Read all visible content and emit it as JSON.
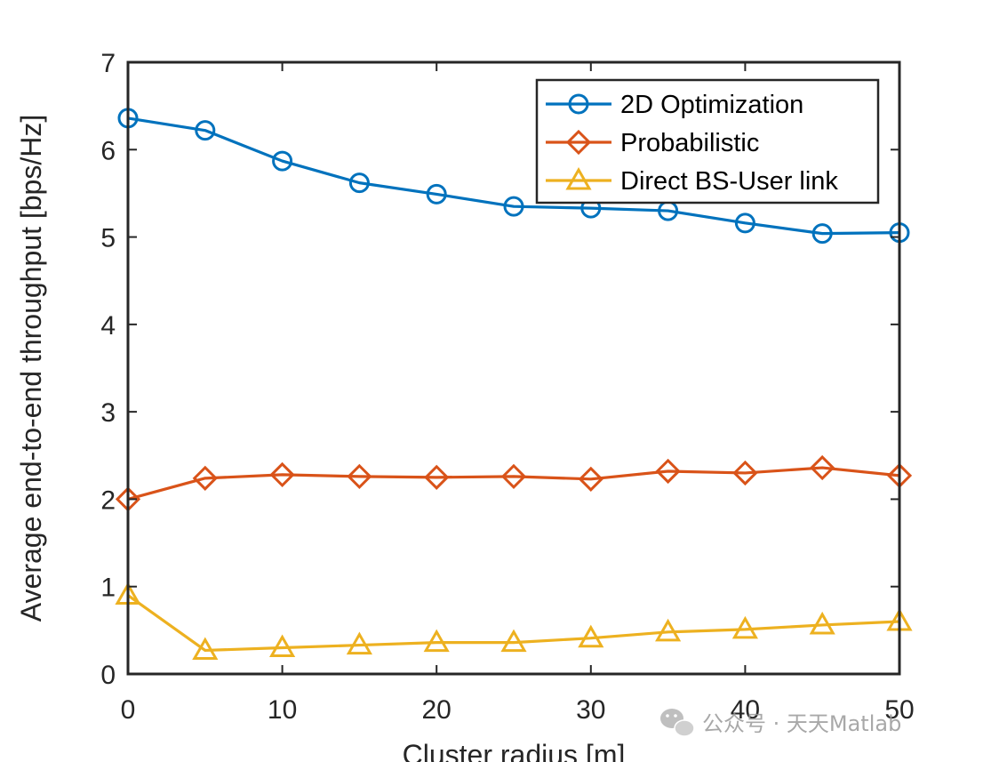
{
  "chart_data": {
    "type": "line",
    "xlabel": "Cluster radius [m]",
    "ylabel": "Average end-to-end throughput [bps/Hz]",
    "xlim": [
      0,
      50
    ],
    "ylim": [
      0,
      7
    ],
    "xticks": [
      0,
      10,
      20,
      30,
      40,
      50
    ],
    "yticks": [
      0,
      1,
      2,
      3,
      4,
      5,
      6,
      7
    ],
    "x": [
      0,
      5,
      10,
      15,
      20,
      25,
      30,
      35,
      40,
      45,
      50
    ],
    "grid": false,
    "legend_position": "top-right",
    "series": [
      {
        "name": "2D Optimization",
        "color": "#0072BD",
        "marker": "circle",
        "values": [
          6.36,
          6.22,
          5.87,
          5.62,
          5.49,
          5.35,
          5.33,
          5.3,
          5.16,
          5.04,
          5.05
        ]
      },
      {
        "name": "Probabilistic",
        "color": "#D95319",
        "marker": "diamond",
        "values": [
          2.0,
          2.24,
          2.28,
          2.26,
          2.25,
          2.26,
          2.23,
          2.32,
          2.3,
          2.36,
          2.27
        ]
      },
      {
        "name": "Direct BS-User link",
        "color": "#EDB120",
        "marker": "triangle",
        "values": [
          0.9,
          0.27,
          0.3,
          0.33,
          0.36,
          0.36,
          0.41,
          0.48,
          0.51,
          0.56,
          0.6
        ]
      }
    ]
  },
  "watermark": {
    "text": "公众号 · 天天Matlab",
    "icon": "wechat-icon"
  }
}
